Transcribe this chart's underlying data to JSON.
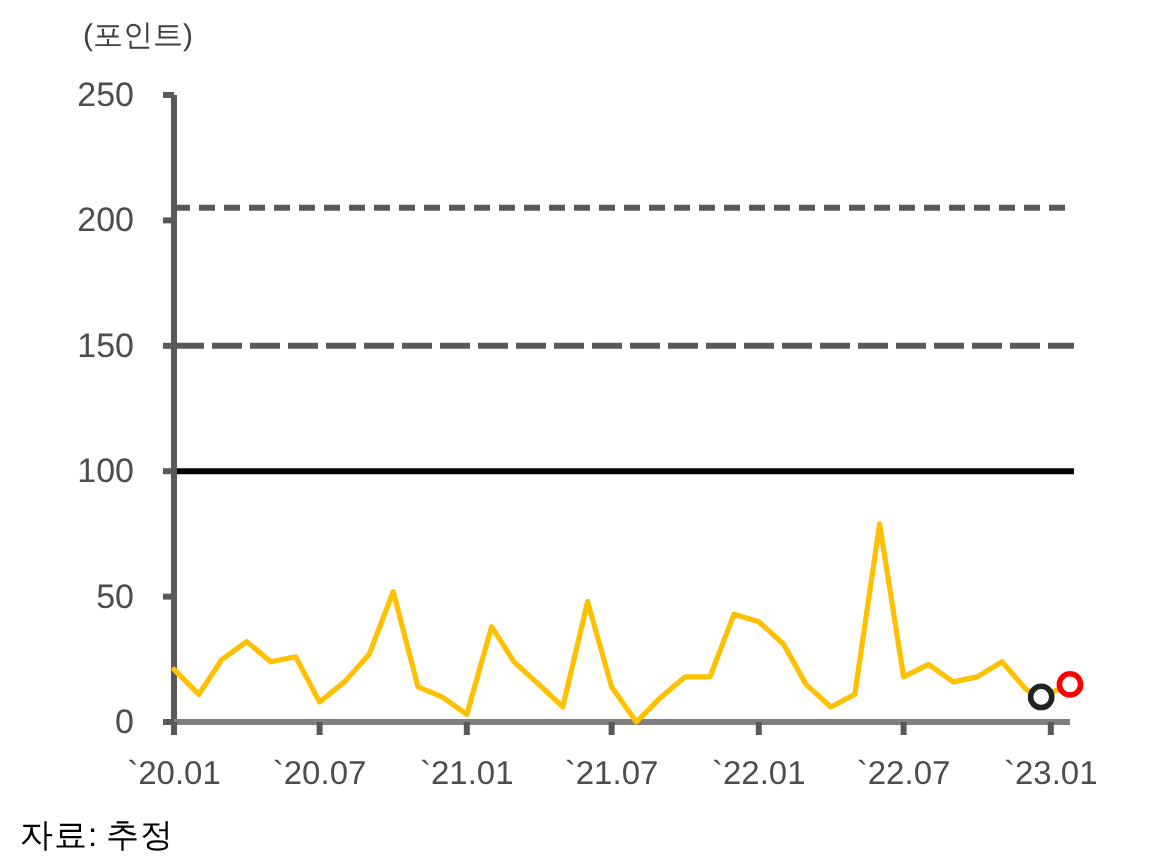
{
  "chart_data": {
    "type": "line",
    "ylabel": "(포인트)",
    "annotations": [
      "자료: 추정"
    ],
    "x": [
      "2020-01",
      "2020-02",
      "2020-03",
      "2020-04",
      "2020-05",
      "2020-06",
      "2020-07",
      "2020-08",
      "2020-09",
      "2020-10",
      "2020-11",
      "2020-12",
      "2021-01",
      "2021-02",
      "2021-03",
      "2021-04",
      "2021-05",
      "2021-06",
      "2021-07",
      "2021-08",
      "2021-09",
      "2021-10",
      "2021-11",
      "2021-12",
      "2022-01",
      "2022-02",
      "2022-03",
      "2022-04",
      "2022-05",
      "2022-06",
      "2022-07",
      "2022-08",
      "2022-09",
      "2022-10",
      "2022-11",
      "2022-12",
      "2022-12-20",
      "2023-01-25"
    ],
    "series": [
      {
        "color": "#ffc000",
        "values": [
          21,
          11,
          25,
          32,
          24,
          26,
          8,
          16,
          27,
          52,
          14,
          10,
          3,
          38,
          24,
          15,
          6,
          48,
          14,
          0,
          10,
          18,
          18,
          43,
          40,
          31,
          15,
          6,
          11,
          79,
          18,
          23,
          16,
          18,
          24,
          13,
          10,
          15
        ]
      },
      {
        "type": "scatter",
        "color": "#222222",
        "marker": "circle",
        "x": [
          "2022-12-20"
        ],
        "values": [
          10
        ]
      },
      {
        "type": "scatter",
        "color": "#ff0000",
        "marker": "circle",
        "x": [
          "2023-01-25"
        ],
        "values": [
          15
        ]
      }
    ],
    "xlim": [
      "2020-01",
      "2023-01-25"
    ],
    "xticks": [
      {
        "value": "2020-01",
        "label": "`20.01"
      },
      {
        "value": "2020-07",
        "label": "`20.07"
      },
      {
        "value": "2021-01",
        "label": "`21.01"
      },
      {
        "value": "2021-07",
        "label": "`21.07"
      },
      {
        "value": "2022-01",
        "label": "`22.01"
      },
      {
        "value": "2022-07",
        "label": "`22.07"
      },
      {
        "value": "2023-01",
        "label": "`23.01"
      }
    ],
    "ylim": [
      0,
      250
    ],
    "yticks": [
      0,
      50,
      100,
      150,
      200,
      250
    ],
    "ref_lines": [
      {
        "axis": "y",
        "value": 100,
        "color": "#000000",
        "line_style": "solid"
      },
      {
        "axis": "y",
        "value": 150,
        "color": "#595959",
        "line_style": "dashed"
      },
      {
        "axis": "y",
        "value": 205,
        "color": "#595959",
        "line_style": "dotted"
      }
    ]
  }
}
